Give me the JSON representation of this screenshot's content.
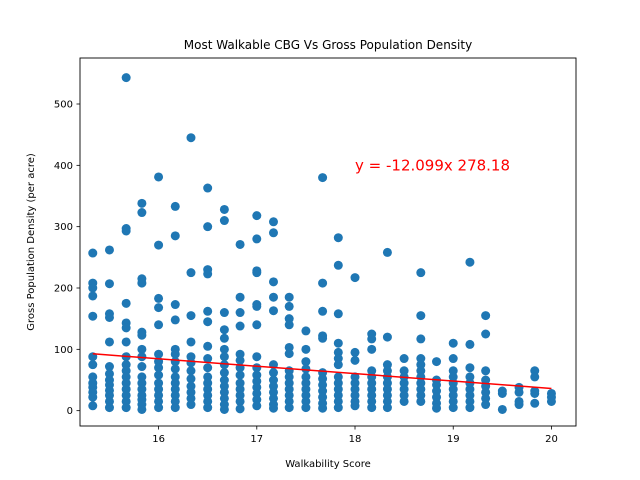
{
  "chart_data": {
    "type": "scatter",
    "title": "Most Walkable CBG Vs Gross Population Density",
    "xlabel": "Walkability Score",
    "ylabel": "Gross Population Density (per acre)",
    "xlim": [
      15.2,
      20.25
    ],
    "ylim": [
      -25,
      575
    ],
    "xticks": [
      16,
      17,
      18,
      19,
      20
    ],
    "yticks": [
      0,
      100,
      200,
      300,
      400,
      500
    ],
    "grid": false,
    "marker_color": "#1f77b4",
    "regression": {
      "slope": -12.099,
      "intercept": 278.18,
      "x_range": [
        15.33,
        20.0
      ],
      "color": "#ff0000",
      "label": "y = -12.099x 278.18",
      "label_at": [
        18.0,
        400
      ]
    },
    "points": [
      [
        15.33,
        257
      ],
      [
        15.33,
        208
      ],
      [
        15.33,
        200
      ],
      [
        15.33,
        187
      ],
      [
        15.33,
        154
      ],
      [
        15.33,
        88
      ],
      [
        15.33,
        75
      ],
      [
        15.33,
        55
      ],
      [
        15.33,
        45
      ],
      [
        15.33,
        38
      ],
      [
        15.33,
        30
      ],
      [
        15.33,
        22
      ],
      [
        15.33,
        8
      ],
      [
        15.5,
        262
      ],
      [
        15.5,
        207
      ],
      [
        15.5,
        158
      ],
      [
        15.5,
        152
      ],
      [
        15.5,
        112
      ],
      [
        15.5,
        72
      ],
      [
        15.5,
        60
      ],
      [
        15.5,
        50
      ],
      [
        15.5,
        42
      ],
      [
        15.5,
        33
      ],
      [
        15.5,
        25
      ],
      [
        15.5,
        15
      ],
      [
        15.5,
        5
      ],
      [
        15.67,
        543
      ],
      [
        15.67,
        297
      ],
      [
        15.67,
        293
      ],
      [
        15.67,
        175
      ],
      [
        15.67,
        143
      ],
      [
        15.67,
        135
      ],
      [
        15.67,
        112
      ],
      [
        15.67,
        88
      ],
      [
        15.67,
        75
      ],
      [
        15.67,
        65
      ],
      [
        15.67,
        55
      ],
      [
        15.67,
        45
      ],
      [
        15.67,
        35
      ],
      [
        15.67,
        25
      ],
      [
        15.67,
        15
      ],
      [
        15.67,
        5
      ],
      [
        15.83,
        338
      ],
      [
        15.83,
        323
      ],
      [
        15.83,
        215
      ],
      [
        15.83,
        208
      ],
      [
        15.83,
        128
      ],
      [
        15.83,
        123
      ],
      [
        15.83,
        100
      ],
      [
        15.83,
        88
      ],
      [
        15.83,
        72
      ],
      [
        15.83,
        55
      ],
      [
        15.83,
        45
      ],
      [
        15.83,
        35
      ],
      [
        15.83,
        25
      ],
      [
        15.83,
        18
      ],
      [
        15.83,
        10
      ],
      [
        15.83,
        2
      ],
      [
        16.0,
        381
      ],
      [
        16.0,
        270
      ],
      [
        16.0,
        183
      ],
      [
        16.0,
        168
      ],
      [
        16.0,
        140
      ],
      [
        16.0,
        92
      ],
      [
        16.0,
        80
      ],
      [
        16.0,
        70
      ],
      [
        16.0,
        58
      ],
      [
        16.0,
        45
      ],
      [
        16.0,
        35
      ],
      [
        16.0,
        25
      ],
      [
        16.0,
        15
      ],
      [
        16.0,
        5
      ],
      [
        16.17,
        333
      ],
      [
        16.17,
        285
      ],
      [
        16.17,
        173
      ],
      [
        16.17,
        148
      ],
      [
        16.17,
        100
      ],
      [
        16.17,
        92
      ],
      [
        16.17,
        80
      ],
      [
        16.17,
        68
      ],
      [
        16.17,
        55
      ],
      [
        16.17,
        45
      ],
      [
        16.17,
        35
      ],
      [
        16.17,
        25
      ],
      [
        16.17,
        15
      ],
      [
        16.17,
        5
      ],
      [
        16.33,
        445
      ],
      [
        16.33,
        225
      ],
      [
        16.33,
        155
      ],
      [
        16.33,
        112
      ],
      [
        16.33,
        88
      ],
      [
        16.33,
        78
      ],
      [
        16.33,
        65
      ],
      [
        16.33,
        52
      ],
      [
        16.33,
        40
      ],
      [
        16.33,
        30
      ],
      [
        16.33,
        20
      ],
      [
        16.33,
        10
      ],
      [
        16.5,
        363
      ],
      [
        16.5,
        300
      ],
      [
        16.5,
        230
      ],
      [
        16.5,
        223
      ],
      [
        16.5,
        162
      ],
      [
        16.5,
        145
      ],
      [
        16.5,
        105
      ],
      [
        16.5,
        85
      ],
      [
        16.5,
        70
      ],
      [
        16.5,
        55
      ],
      [
        16.5,
        45
      ],
      [
        16.5,
        35
      ],
      [
        16.5,
        25
      ],
      [
        16.5,
        15
      ],
      [
        16.5,
        5
      ],
      [
        16.67,
        328
      ],
      [
        16.67,
        310
      ],
      [
        16.67,
        160
      ],
      [
        16.67,
        132
      ],
      [
        16.67,
        118
      ],
      [
        16.67,
        100
      ],
      [
        16.67,
        88
      ],
      [
        16.67,
        75
      ],
      [
        16.67,
        62
      ],
      [
        16.67,
        50
      ],
      [
        16.67,
        40
      ],
      [
        16.67,
        30
      ],
      [
        16.67,
        20
      ],
      [
        16.67,
        10
      ],
      [
        16.67,
        2
      ],
      [
        16.83,
        271
      ],
      [
        16.83,
        185
      ],
      [
        16.83,
        160
      ],
      [
        16.83,
        138
      ],
      [
        16.83,
        92
      ],
      [
        16.83,
        82
      ],
      [
        16.83,
        70
      ],
      [
        16.83,
        58
      ],
      [
        16.83,
        45
      ],
      [
        16.83,
        35
      ],
      [
        16.83,
        25
      ],
      [
        16.83,
        15
      ],
      [
        16.83,
        3
      ],
      [
        17.0,
        318
      ],
      [
        17.0,
        280
      ],
      [
        17.0,
        228
      ],
      [
        17.0,
        225
      ],
      [
        17.0,
        173
      ],
      [
        17.0,
        170
      ],
      [
        17.0,
        140
      ],
      [
        17.0,
        88
      ],
      [
        17.0,
        70
      ],
      [
        17.0,
        58
      ],
      [
        17.0,
        48
      ],
      [
        17.0,
        38
      ],
      [
        17.0,
        28
      ],
      [
        17.0,
        18
      ],
      [
        17.0,
        8
      ],
      [
        17.17,
        308
      ],
      [
        17.17,
        290
      ],
      [
        17.17,
        210
      ],
      [
        17.17,
        185
      ],
      [
        17.17,
        163
      ],
      [
        17.17,
        75
      ],
      [
        17.17,
        62
      ],
      [
        17.17,
        50
      ],
      [
        17.17,
        40
      ],
      [
        17.17,
        30
      ],
      [
        17.17,
        20
      ],
      [
        17.17,
        10
      ],
      [
        17.17,
        4
      ],
      [
        17.33,
        185
      ],
      [
        17.33,
        170
      ],
      [
        17.33,
        150
      ],
      [
        17.33,
        140
      ],
      [
        17.33,
        103
      ],
      [
        17.33,
        93
      ],
      [
        17.33,
        65
      ],
      [
        17.33,
        55
      ],
      [
        17.33,
        45
      ],
      [
        17.33,
        35
      ],
      [
        17.33,
        25
      ],
      [
        17.33,
        15
      ],
      [
        17.33,
        5
      ],
      [
        17.5,
        130
      ],
      [
        17.5,
        100
      ],
      [
        17.5,
        80
      ],
      [
        17.5,
        68
      ],
      [
        17.5,
        55
      ],
      [
        17.5,
        45
      ],
      [
        17.5,
        35
      ],
      [
        17.5,
        25
      ],
      [
        17.5,
        15
      ],
      [
        17.5,
        5
      ],
      [
        17.67,
        380
      ],
      [
        17.67,
        208
      ],
      [
        17.67,
        162
      ],
      [
        17.67,
        122
      ],
      [
        17.67,
        118
      ],
      [
        17.67,
        62
      ],
      [
        17.67,
        52
      ],
      [
        17.67,
        42
      ],
      [
        17.67,
        32
      ],
      [
        17.67,
        22
      ],
      [
        17.67,
        12
      ],
      [
        17.67,
        4
      ],
      [
        17.83,
        282
      ],
      [
        17.83,
        237
      ],
      [
        17.83,
        158
      ],
      [
        17.83,
        110
      ],
      [
        17.83,
        95
      ],
      [
        17.83,
        85
      ],
      [
        17.83,
        75
      ],
      [
        17.83,
        55
      ],
      [
        17.83,
        45
      ],
      [
        17.83,
        35
      ],
      [
        17.83,
        25
      ],
      [
        17.83,
        15
      ],
      [
        17.83,
        5
      ],
      [
        18.0,
        217
      ],
      [
        18.0,
        95
      ],
      [
        18.0,
        82
      ],
      [
        18.0,
        55
      ],
      [
        18.0,
        45
      ],
      [
        18.0,
        35
      ],
      [
        18.0,
        25
      ],
      [
        18.0,
        15
      ],
      [
        18.0,
        8
      ],
      [
        18.17,
        125
      ],
      [
        18.17,
        117
      ],
      [
        18.17,
        100
      ],
      [
        18.17,
        65
      ],
      [
        18.17,
        55
      ],
      [
        18.17,
        45
      ],
      [
        18.17,
        35
      ],
      [
        18.17,
        25
      ],
      [
        18.17,
        15
      ],
      [
        18.17,
        5
      ],
      [
        18.33,
        258
      ],
      [
        18.33,
        120
      ],
      [
        18.33,
        75
      ],
      [
        18.33,
        65
      ],
      [
        18.33,
        55
      ],
      [
        18.33,
        45
      ],
      [
        18.33,
        35
      ],
      [
        18.33,
        25
      ],
      [
        18.33,
        15
      ],
      [
        18.33,
        5
      ],
      [
        18.5,
        85
      ],
      [
        18.5,
        65
      ],
      [
        18.5,
        55
      ],
      [
        18.5,
        45
      ],
      [
        18.5,
        35
      ],
      [
        18.5,
        25
      ],
      [
        18.5,
        15
      ],
      [
        18.67,
        225
      ],
      [
        18.67,
        155
      ],
      [
        18.67,
        117
      ],
      [
        18.67,
        85
      ],
      [
        18.67,
        75
      ],
      [
        18.67,
        65
      ],
      [
        18.67,
        55
      ],
      [
        18.67,
        45
      ],
      [
        18.67,
        35
      ],
      [
        18.67,
        25
      ],
      [
        18.67,
        15
      ],
      [
        18.83,
        80
      ],
      [
        18.83,
        50
      ],
      [
        18.83,
        42
      ],
      [
        18.83,
        32
      ],
      [
        18.83,
        22
      ],
      [
        18.83,
        12
      ],
      [
        18.83,
        4
      ],
      [
        19.0,
        110
      ],
      [
        19.0,
        85
      ],
      [
        19.0,
        65
      ],
      [
        19.0,
        55
      ],
      [
        19.0,
        45
      ],
      [
        19.0,
        35
      ],
      [
        19.0,
        25
      ],
      [
        19.0,
        15
      ],
      [
        19.0,
        5
      ],
      [
        19.17,
        242
      ],
      [
        19.17,
        108
      ],
      [
        19.17,
        70
      ],
      [
        19.17,
        55
      ],
      [
        19.17,
        45
      ],
      [
        19.17,
        35
      ],
      [
        19.17,
        25
      ],
      [
        19.17,
        15
      ],
      [
        19.17,
        5
      ],
      [
        19.33,
        155
      ],
      [
        19.33,
        125
      ],
      [
        19.33,
        65
      ],
      [
        19.33,
        50
      ],
      [
        19.33,
        40
      ],
      [
        19.33,
        30
      ],
      [
        19.33,
        20
      ],
      [
        19.33,
        10
      ],
      [
        19.5,
        32
      ],
      [
        19.5,
        28
      ],
      [
        19.5,
        2
      ],
      [
        19.67,
        38
      ],
      [
        19.67,
        30
      ],
      [
        19.67,
        15
      ],
      [
        19.67,
        10
      ],
      [
        19.83,
        65
      ],
      [
        19.83,
        55
      ],
      [
        19.83,
        32
      ],
      [
        19.83,
        28
      ],
      [
        19.83,
        12
      ],
      [
        20.0,
        28
      ],
      [
        20.0,
        22
      ],
      [
        20.0,
        15
      ]
    ]
  }
}
